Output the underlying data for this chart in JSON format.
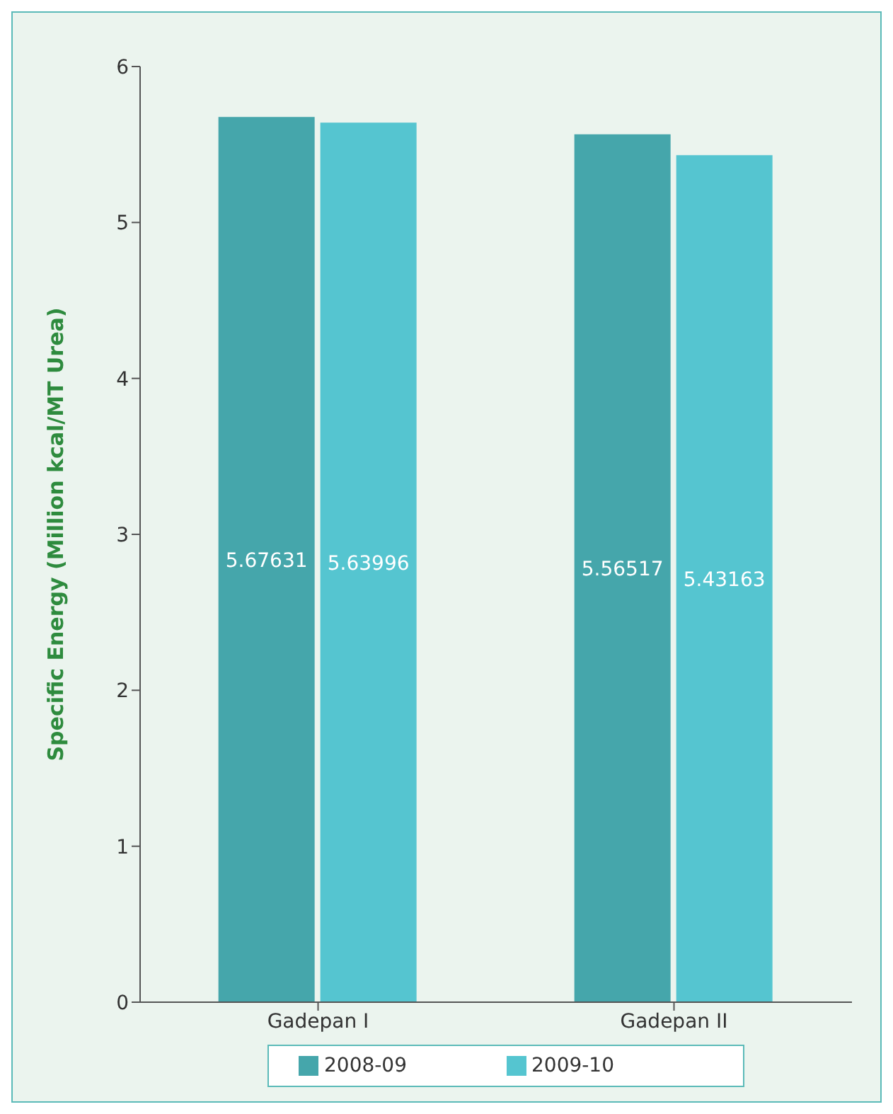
{
  "chart_data": {
    "type": "bar",
    "ylabel": "Specific Energy (Million kcal/MT Urea)",
    "categories": [
      "Gadepan I",
      "Gadepan II"
    ],
    "series": [
      {
        "name": "2008-09",
        "color": "#45a6ab",
        "values": [
          5.67631,
          5.56517
        ]
      },
      {
        "name": "2009-10",
        "color": "#55c5d0",
        "values": [
          5.63996,
          5.43163
        ]
      }
    ],
    "ylim": [
      0,
      6
    ],
    "yticks": [
      0,
      1,
      2,
      3,
      4,
      5,
      6
    ],
    "grid": false,
    "legend": "bottom",
    "data_labels": true
  }
}
